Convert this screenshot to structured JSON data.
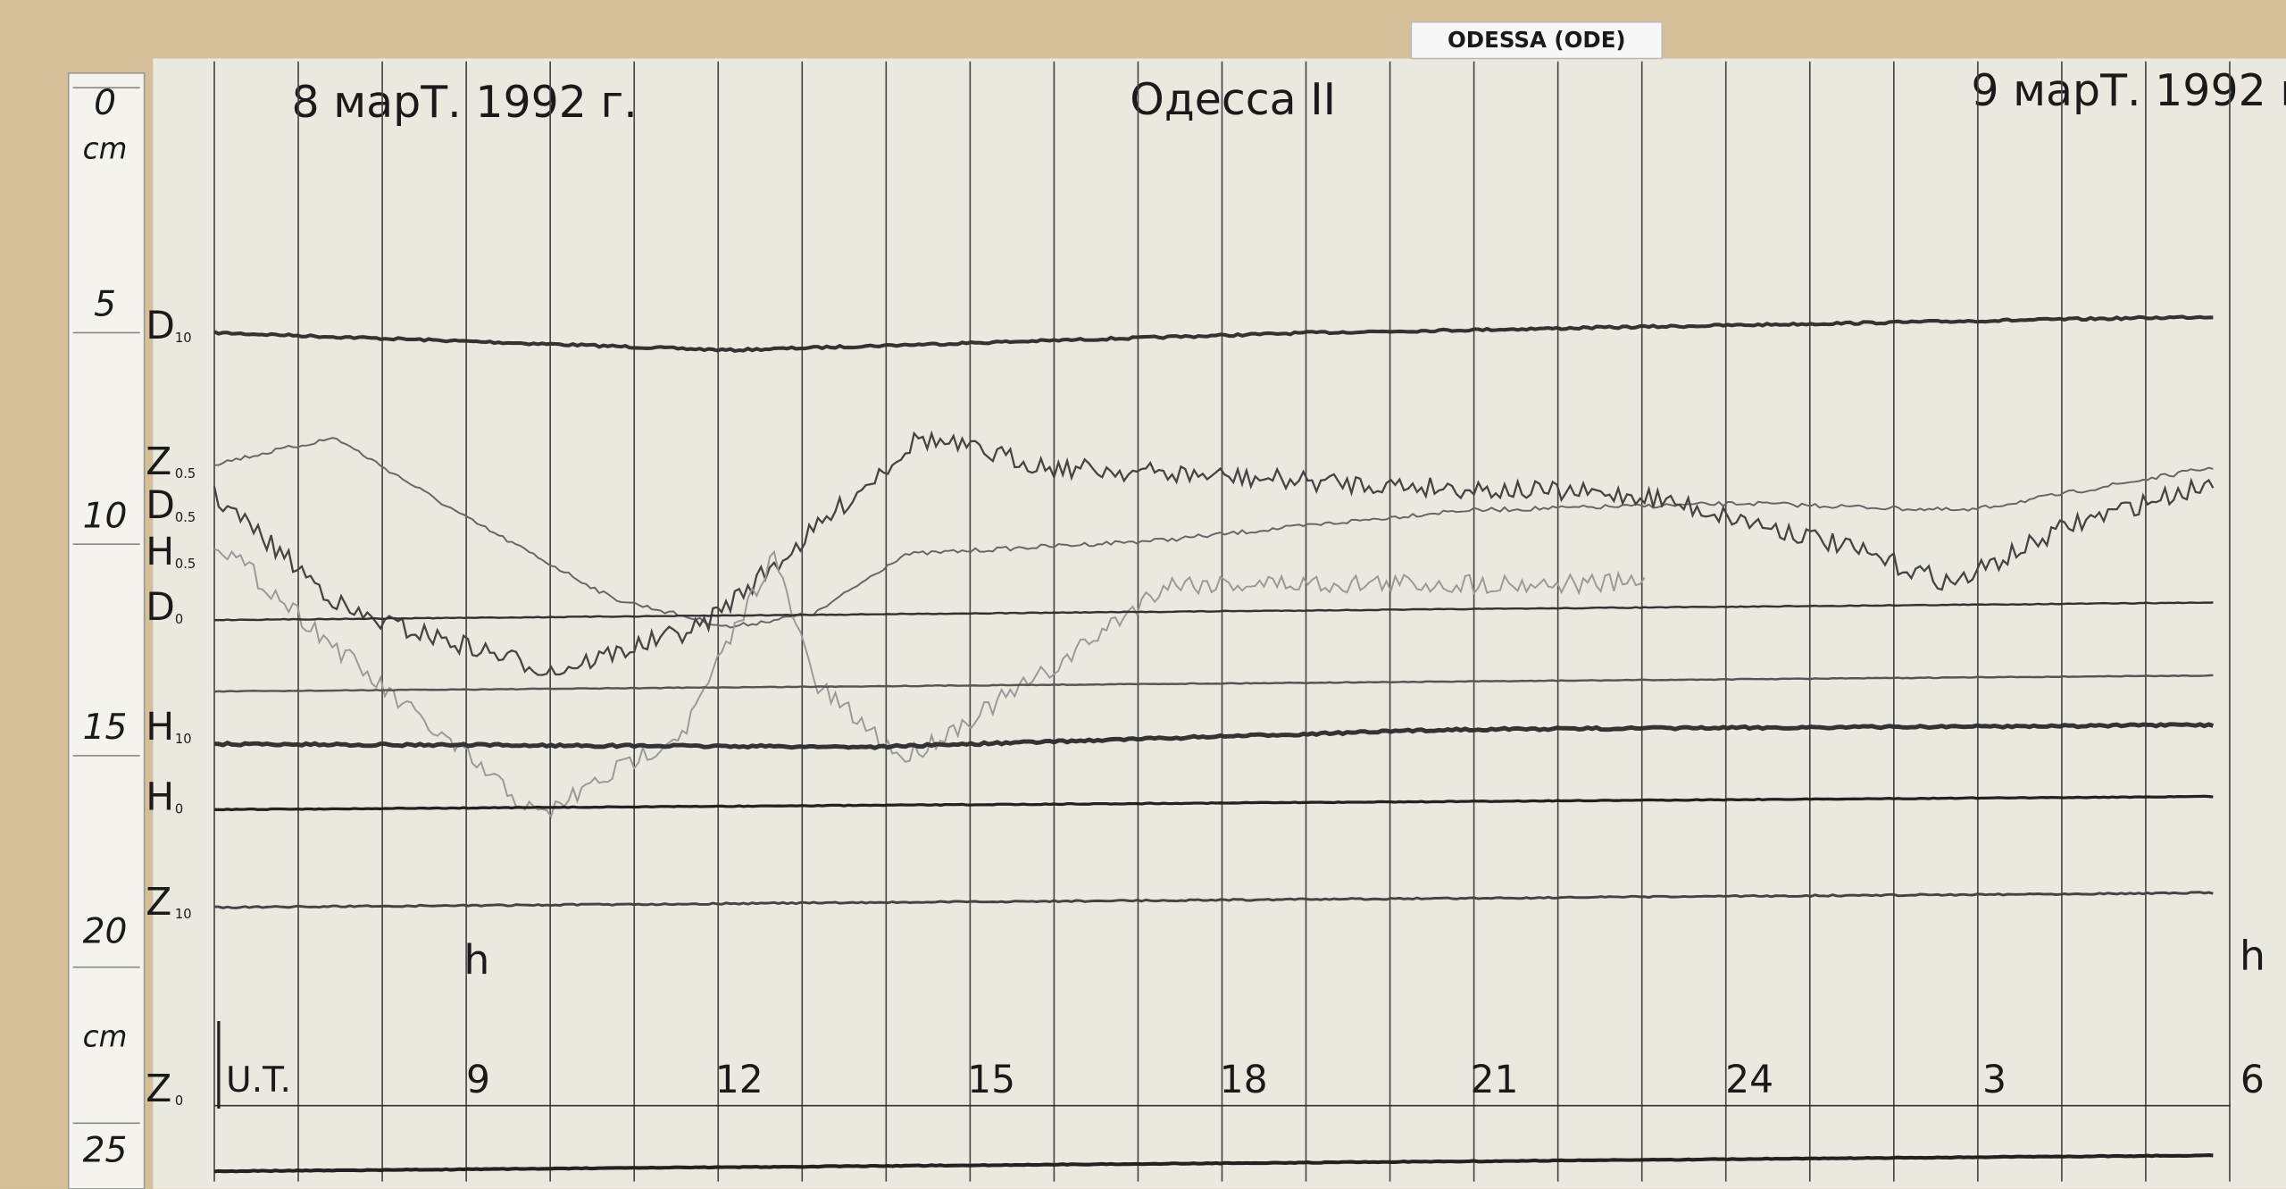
{
  "header": {
    "station_label": "ODESSA (ODE)"
  },
  "sheet": {
    "left_date": "8 марТ. 1992 г.",
    "station": "Одесса II",
    "right_date": "9 марТ. 1992 г."
  },
  "ruler": {
    "labels": [
      "0",
      "cm",
      "5",
      "10",
      "15",
      "20",
      "cm",
      "25"
    ]
  },
  "trace_labels": [
    {
      "letter": "D",
      "sub": "10"
    },
    {
      "letter": "Z",
      "sub": "0.5"
    },
    {
      "letter": "D",
      "sub": "0.5"
    },
    {
      "letter": "H",
      "sub": "0.5"
    },
    {
      "letter": "D",
      "sub": "0"
    },
    {
      "letter": "H",
      "sub": "10"
    },
    {
      "letter": "H",
      "sub": "0"
    },
    {
      "letter": "Z",
      "sub": "10"
    },
    {
      "letter": "Z",
      "sub": "0"
    }
  ],
  "time_axis": {
    "unit_marks": [
      "h",
      "h"
    ],
    "timescale": "U.T.",
    "hours": [
      "9",
      "12",
      "15",
      "18",
      "21",
      "24",
      "3",
      "6"
    ]
  }
}
